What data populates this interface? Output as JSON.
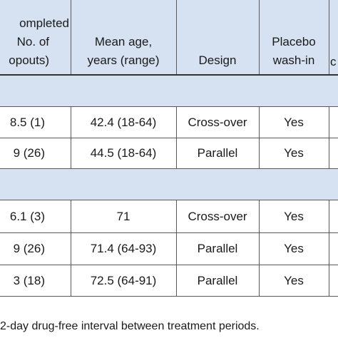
{
  "table": {
    "headers": {
      "completed": [
        "ompleted",
        "No. of",
        "opouts)"
      ],
      "mean_age": [
        "Mean age,",
        "years (range)"
      ],
      "design": [
        "Design"
      ],
      "placebo": [
        "Placebo",
        "wash-in"
      ]
    },
    "section1_rows": [
      {
        "completed": "8.5 (1)",
        "mean_age": "42.4 (18-64)",
        "design": "Cross-over",
        "placebo": "Yes"
      },
      {
        "completed": "9 (26)",
        "mean_age": "44.5 (18-64)",
        "design": "Parallel",
        "placebo": "Yes"
      }
    ],
    "section2_rows": [
      {
        "completed": "6.1 (3)",
        "mean_age": "71",
        "design": "Cross-over",
        "placebo": "Yes"
      },
      {
        "completed": "9 (26)",
        "mean_age": "71.4 (64-93)",
        "design": "Parallel",
        "placebo": "Yes"
      },
      {
        "completed": "3 (18)",
        "mean_age": "72.5 (64-91)",
        "design": "Parallel",
        "placebo": "Yes"
      }
    ],
    "edge_glyph": "c"
  },
  "footnote": "2-day drug-free interval between treatment periods.",
  "colors": {
    "header_bg": "#d6e2f1",
    "rule": "#5a5a5a"
  }
}
